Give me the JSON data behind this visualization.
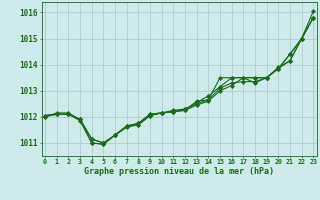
{
  "xlabel": "Graphe pression niveau de la mer (hPa)",
  "x_hours": [
    0,
    1,
    2,
    3,
    4,
    5,
    6,
    7,
    8,
    9,
    10,
    11,
    12,
    13,
    14,
    15,
    16,
    17,
    18,
    19,
    20,
    21,
    22,
    23
  ],
  "line1": [
    1012.0,
    1012.1,
    1012.1,
    1011.9,
    1011.15,
    1011.0,
    1011.3,
    1011.65,
    1011.75,
    1012.1,
    1012.15,
    1012.2,
    1012.25,
    1012.6,
    1012.65,
    1013.5,
    1013.5,
    1013.5,
    1013.5,
    1013.5,
    1013.85,
    1014.4,
    1015.0,
    1016.05
  ],
  "line2": [
    1012.05,
    1012.1,
    1012.1,
    1011.9,
    1011.15,
    1011.0,
    1011.3,
    1011.65,
    1011.75,
    1012.1,
    1012.15,
    1012.25,
    1012.3,
    1012.55,
    1012.8,
    1013.15,
    1013.5,
    1013.5,
    1013.5,
    1013.5,
    1013.85,
    1014.4,
    1015.0,
    1015.8
  ],
  "line3": [
    1012.05,
    1012.1,
    1012.1,
    1011.85,
    1011.0,
    1010.95,
    1011.3,
    1011.6,
    1011.7,
    1012.05,
    1012.15,
    1012.2,
    1012.25,
    1012.45,
    1012.6,
    1013.0,
    1013.2,
    1013.5,
    1013.3,
    1013.5,
    1013.85,
    1014.15,
    1015.0,
    1015.8
  ],
  "line4": [
    1012.0,
    1012.15,
    1012.15,
    1011.9,
    1011.0,
    1010.95,
    1011.3,
    1011.65,
    1011.7,
    1012.05,
    1012.15,
    1012.2,
    1012.3,
    1012.5,
    1012.65,
    1013.1,
    1013.3,
    1013.35,
    1013.35,
    1013.5,
    1013.9,
    1014.15,
    1015.0,
    1015.8
  ],
  "line_color": "#1a6b1a",
  "bg_color": "#ceeaea",
  "grid_color": "#aac8c8",
  "ylim": [
    1010.5,
    1016.4
  ],
  "yticks": [
    1011,
    1012,
    1013,
    1014,
    1015,
    1016
  ],
  "xticks": [
    0,
    1,
    2,
    3,
    4,
    5,
    6,
    7,
    8,
    9,
    10,
    11,
    12,
    13,
    14,
    15,
    16,
    17,
    18,
    19,
    20,
    21,
    22,
    23
  ]
}
